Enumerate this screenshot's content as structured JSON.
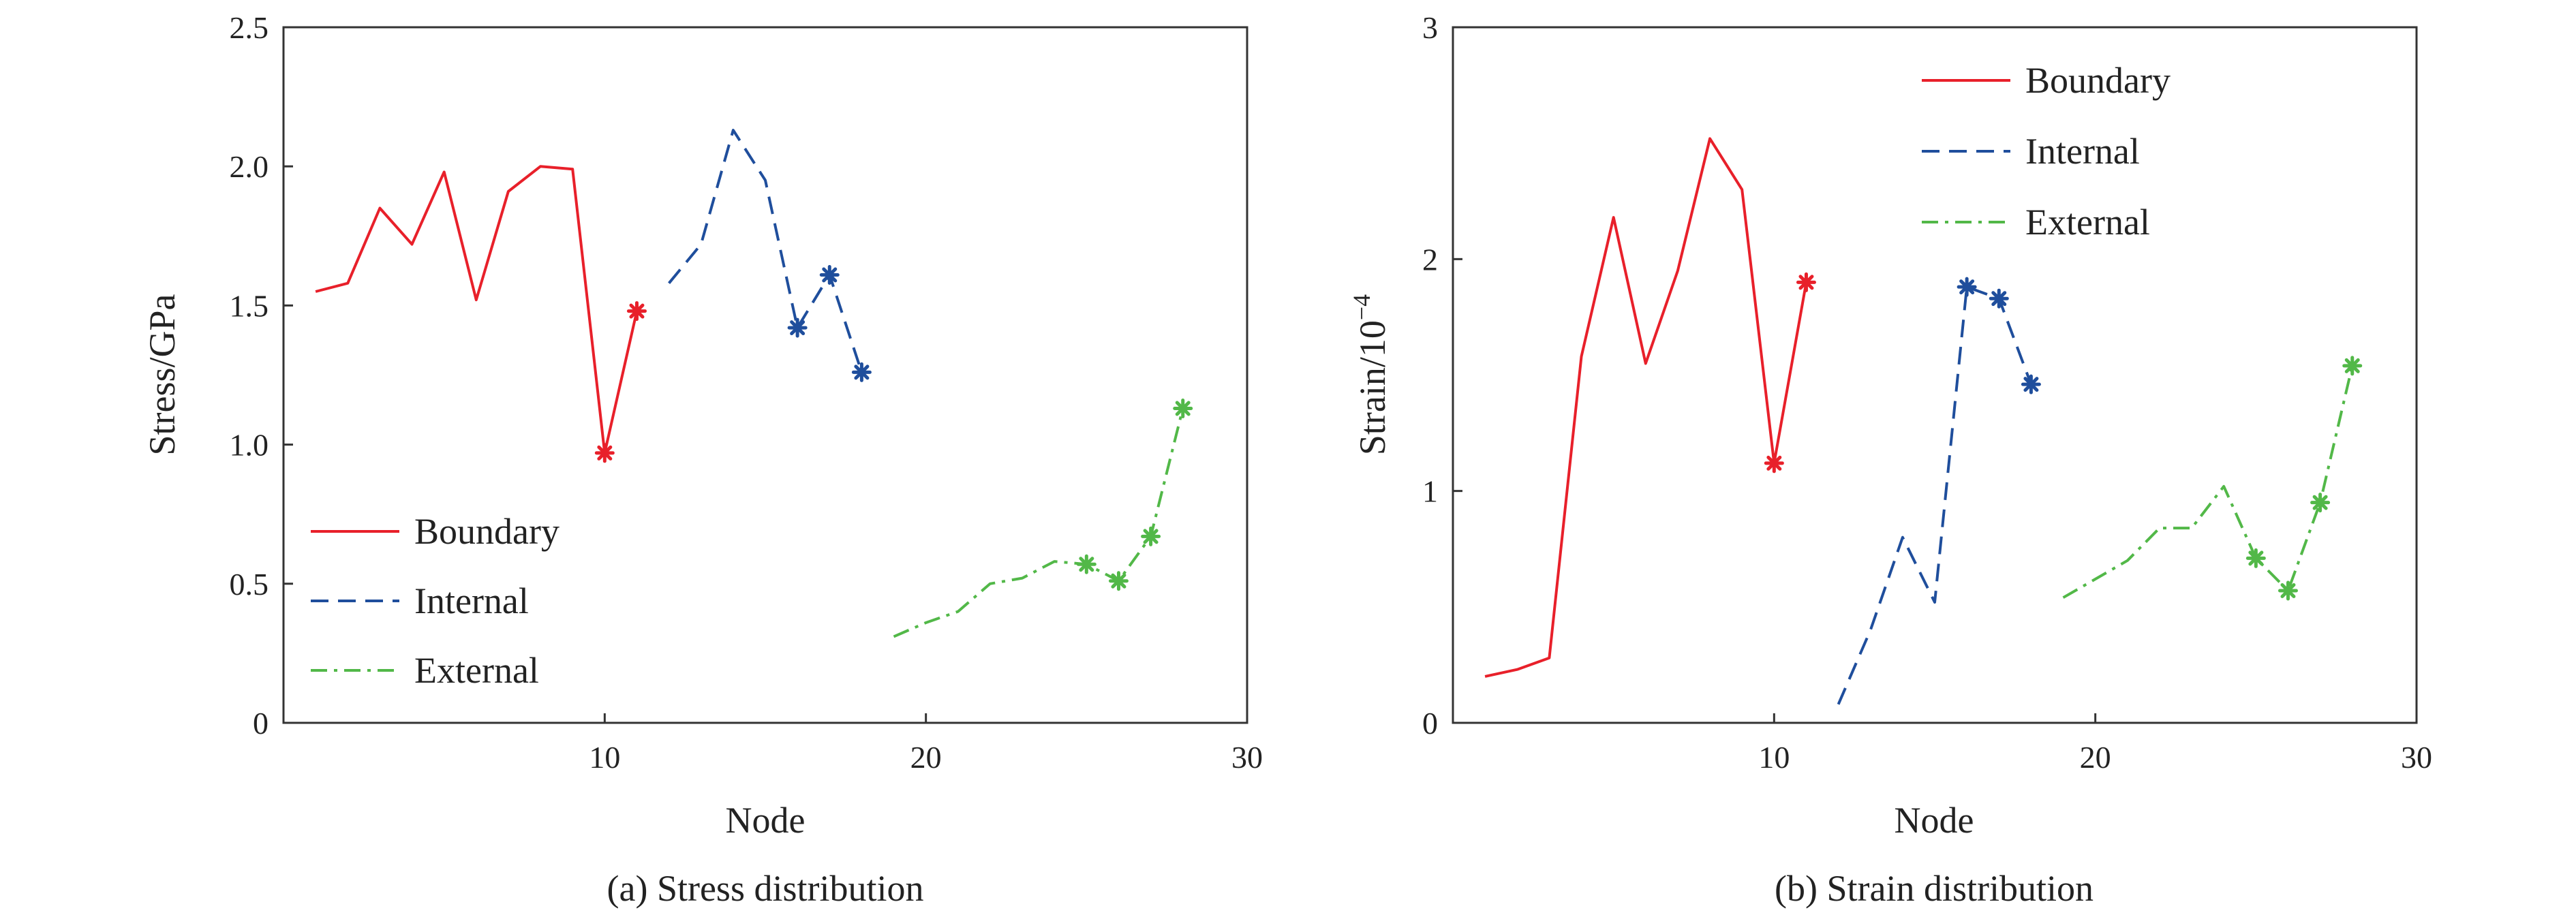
{
  "figure": {
    "panel_a_caption": "(a) Stress distribution",
    "panel_b_caption": "(b) Strain distribution"
  },
  "chart_data": [
    {
      "type": "line",
      "panel": "a",
      "title": "(a) Stress distribution",
      "xlabel": "Node",
      "ylabel": "Stress/GPa",
      "xlim": [
        0,
        30
      ],
      "ylim": [
        0,
        2.5
      ],
      "xticks": [
        10,
        20,
        30
      ],
      "xtick_labels": [
        "10",
        "20",
        "30"
      ],
      "yticks": [
        0,
        0.5,
        1.0,
        1.5,
        2.0,
        2.5
      ],
      "ytick_labels": [
        "0",
        "0.5",
        "1.0",
        "1.5",
        "2.0",
        "2.5"
      ],
      "legend_position": "bottom-left",
      "series": [
        {
          "name": "Boundary",
          "color": "#e8202a",
          "dash": "solid",
          "x": [
            1,
            2,
            3,
            4,
            5,
            6,
            7,
            8,
            9,
            10,
            11
          ],
          "y": [
            1.55,
            1.58,
            1.85,
            1.72,
            1.98,
            1.52,
            1.91,
            2.0,
            1.99,
            0.97,
            1.48
          ],
          "markers_at": [
            10,
            11
          ]
        },
        {
          "name": "Internal",
          "color": "#1f4e9c",
          "dash": "dashed",
          "x": [
            12,
            13,
            14,
            15,
            16,
            17,
            18
          ],
          "y": [
            1.58,
            1.72,
            2.13,
            1.95,
            1.42,
            1.61,
            1.26
          ],
          "markers_at": [
            16,
            17,
            18
          ]
        },
        {
          "name": "External",
          "color": "#52b848",
          "dash": "dashdot",
          "x": [
            19,
            20,
            21,
            22,
            23,
            24,
            25,
            26,
            27,
            28
          ],
          "y": [
            0.31,
            0.36,
            0.4,
            0.5,
            0.52,
            0.58,
            0.57,
            0.51,
            0.67,
            1.13
          ],
          "markers_at": [
            25,
            26,
            27,
            28
          ]
        }
      ]
    },
    {
      "type": "line",
      "panel": "b",
      "title": "(b) Strain distribution",
      "xlabel": "Node",
      "ylabel_prefix": "Strain/10",
      "ylabel_exponent": "−4",
      "xlim": [
        0,
        30
      ],
      "ylim": [
        0,
        3
      ],
      "xticks": [
        10,
        20,
        30
      ],
      "xtick_labels": [
        "10",
        "20",
        "30"
      ],
      "yticks": [
        0,
        1,
        2,
        3
      ],
      "ytick_labels": [
        "0",
        "1",
        "2",
        "3"
      ],
      "legend_position": "top-center",
      "series": [
        {
          "name": "Boundary",
          "color": "#e8202a",
          "dash": "solid",
          "x": [
            1,
            2,
            3,
            4,
            5,
            6,
            7,
            8,
            9,
            10,
            11
          ],
          "y": [
            0.2,
            0.23,
            0.28,
            1.58,
            2.18,
            1.55,
            1.95,
            2.52,
            2.3,
            1.12,
            1.9
          ],
          "markers_at": [
            10,
            11
          ]
        },
        {
          "name": "Internal",
          "color": "#1f4e9c",
          "dash": "dashed",
          "x": [
            12,
            13,
            14,
            15,
            16,
            17,
            18
          ],
          "y": [
            0.08,
            0.4,
            0.8,
            0.52,
            1.88,
            1.83,
            1.46
          ],
          "markers_at": [
            16,
            17,
            18
          ]
        },
        {
          "name": "External",
          "color": "#52b848",
          "dash": "dashdot",
          "x": [
            19,
            20,
            21,
            22,
            23,
            24,
            25,
            26,
            27,
            28
          ],
          "y": [
            0.54,
            0.62,
            0.7,
            0.84,
            0.84,
            1.02,
            0.71,
            0.57,
            0.95,
            1.54
          ],
          "markers_at": [
            25,
            26,
            27,
            28
          ]
        }
      ]
    }
  ]
}
